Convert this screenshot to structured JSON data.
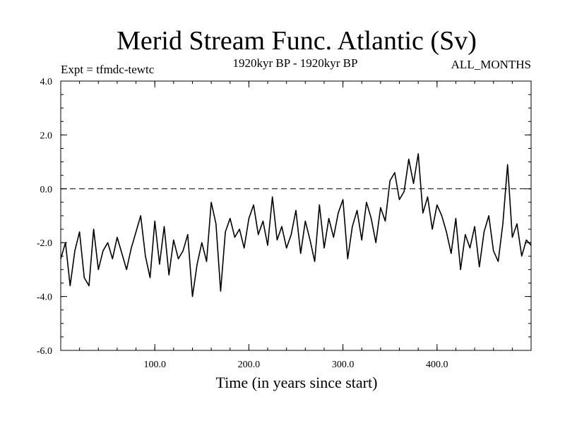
{
  "chart_data": {
    "type": "line",
    "title": "Merid Stream Func. Atlantic (Sv)",
    "subtitle_left": "Expt = tfmdc-tewtc",
    "subtitle_center": "1920kyr BP - 1920kyr BP",
    "subtitle_right": "ALL_MONTHS",
    "xlabel": "Time (in years since start)",
    "ylabel": "",
    "xlim": [
      0,
      500
    ],
    "ylim": [
      -6.0,
      4.0
    ],
    "x_ticks": [
      100,
      200,
      300,
      400
    ],
    "x_tick_labels": [
      "100.0",
      "200.0",
      "300.0",
      "400.0"
    ],
    "y_ticks": [
      4,
      2,
      0,
      -2,
      -4,
      -6
    ],
    "y_tick_labels": [
      "4.0",
      "2.0",
      "0.0",
      "-2.0",
      "-4.0",
      "-6.0"
    ],
    "reference_line": {
      "y": 0,
      "style": "dashed"
    },
    "grid": false,
    "line_color": "#000000",
    "series": [
      {
        "x": [
          0,
          5,
          10,
          15,
          20,
          25,
          30,
          35,
          40,
          45,
          50,
          55,
          60,
          65,
          70,
          75,
          80,
          85,
          90,
          95,
          100,
          105,
          110,
          115,
          120,
          125,
          130,
          135,
          140,
          145,
          150,
          155,
          160,
          165,
          170,
          175,
          180,
          185,
          190,
          195,
          200,
          205,
          210,
          215,
          220,
          225,
          230,
          235,
          240,
          245,
          250,
          255,
          260,
          265,
          270,
          275,
          280,
          285,
          290,
          295,
          300,
          305,
          310,
          315,
          320,
          325,
          330,
          335,
          340,
          345,
          350,
          355,
          360,
          365,
          370,
          375,
          380,
          385,
          390,
          395,
          400,
          405,
          410,
          415,
          420,
          425,
          430,
          435,
          440,
          445,
          450,
          455,
          460,
          465,
          470,
          475,
          480,
          485,
          490,
          495,
          500
        ],
        "values": [
          -2.6,
          -2.0,
          -3.6,
          -2.3,
          -1.6,
          -3.3,
          -3.6,
          -1.5,
          -3.0,
          -2.3,
          -2.0,
          -2.6,
          -1.8,
          -2.4,
          -3.0,
          -2.2,
          -1.6,
          -1.0,
          -2.5,
          -3.3,
          -1.2,
          -2.8,
          -1.4,
          -3.2,
          -1.9,
          -2.6,
          -2.3,
          -1.7,
          -4.0,
          -2.8,
          -2.0,
          -2.7,
          -0.5,
          -1.3,
          -3.8,
          -1.6,
          -1.1,
          -1.8,
          -1.5,
          -2.2,
          -1.1,
          -0.6,
          -1.7,
          -1.2,
          -2.1,
          -0.3,
          -1.9,
          -1.4,
          -2.2,
          -1.7,
          -0.8,
          -2.4,
          -1.2,
          -1.9,
          -2.7,
          -0.6,
          -2.2,
          -1.1,
          -1.8,
          -0.9,
          -0.4,
          -2.6,
          -1.4,
          -0.8,
          -1.9,
          -0.5,
          -1.1,
          -2.0,
          -0.7,
          -1.2,
          0.3,
          0.6,
          -0.4,
          -0.1,
          1.1,
          0.2,
          1.3,
          -0.9,
          -0.3,
          -1.5,
          -0.6,
          -1.0,
          -1.6,
          -2.4,
          -1.1,
          -3.0,
          -1.7,
          -2.2,
          -1.4,
          -2.9,
          -1.6,
          -1.0,
          -2.3,
          -2.7,
          -1.3,
          0.9,
          -1.8,
          -1.3,
          -2.5,
          -1.9,
          -2.1
        ]
      }
    ]
  }
}
